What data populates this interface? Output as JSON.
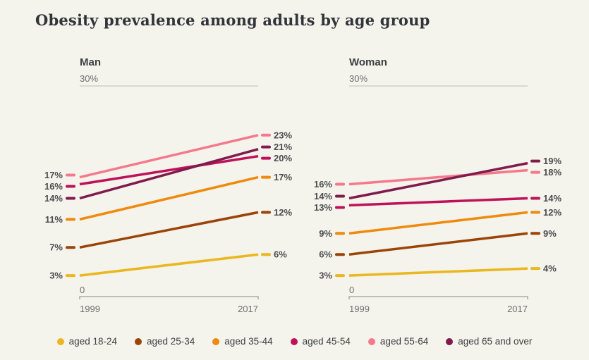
{
  "title": "Obesity prevalence among adults by age group",
  "chart_data": {
    "type": "line",
    "subtype": "slope-chart-small-multiples",
    "x": [
      "1999",
      "2017"
    ],
    "ylim": [
      0,
      30
    ],
    "ymax_label": "30%",
    "baseline_label": "0",
    "grid": "top-gridline-only",
    "legend_position": "bottom-center",
    "value_suffix": "%",
    "panels": [
      {
        "title": "Man",
        "series": [
          {
            "name": "aged 18-24",
            "color": "#eab71e",
            "values": [
              3,
              6
            ]
          },
          {
            "name": "aged 25-34",
            "color": "#9b4408",
            "values": [
              7,
              12
            ]
          },
          {
            "name": "aged 35-44",
            "color": "#ef8a0c",
            "values": [
              11,
              17
            ]
          },
          {
            "name": "aged 45-54",
            "color": "#bf115a",
            "values": [
              16,
              20
            ]
          },
          {
            "name": "aged 55-64",
            "color": "#f5798c",
            "values": [
              17,
              23
            ]
          },
          {
            "name": "aged 65 and over",
            "color": "#801b4e",
            "values": [
              14,
              21
            ]
          }
        ]
      },
      {
        "title": "Woman",
        "series": [
          {
            "name": "aged 18-24",
            "color": "#eab71e",
            "values": [
              3,
              4
            ]
          },
          {
            "name": "aged 25-34",
            "color": "#9b4408",
            "values": [
              6,
              9
            ]
          },
          {
            "name": "aged 35-44",
            "color": "#ef8a0c",
            "values": [
              9,
              12
            ]
          },
          {
            "name": "aged 45-54",
            "color": "#bf115a",
            "values": [
              13,
              14
            ]
          },
          {
            "name": "aged 55-64",
            "color": "#f5798c",
            "values": [
              16,
              18
            ]
          },
          {
            "name": "aged 65 and over",
            "color": "#801b4e",
            "values": [
              14,
              19
            ]
          }
        ]
      }
    ],
    "legend": [
      {
        "label": "aged 18-24",
        "color": "#eab71e"
      },
      {
        "label": "aged 25-34",
        "color": "#9b4408"
      },
      {
        "label": "aged 35-44",
        "color": "#ef8a0c"
      },
      {
        "label": "aged 45-54",
        "color": "#bf115a"
      },
      {
        "label": "aged 55-64",
        "color": "#f5798c"
      },
      {
        "label": "aged 65 and over",
        "color": "#801b4e"
      }
    ],
    "colors": {
      "background": "#f4f3ec",
      "gridline": "#c9c8bf",
      "axis": "#9d9d96",
      "title_text": "#31353a",
      "label_text": "#4c4d4f",
      "axis_text": "#6e6f71"
    }
  }
}
